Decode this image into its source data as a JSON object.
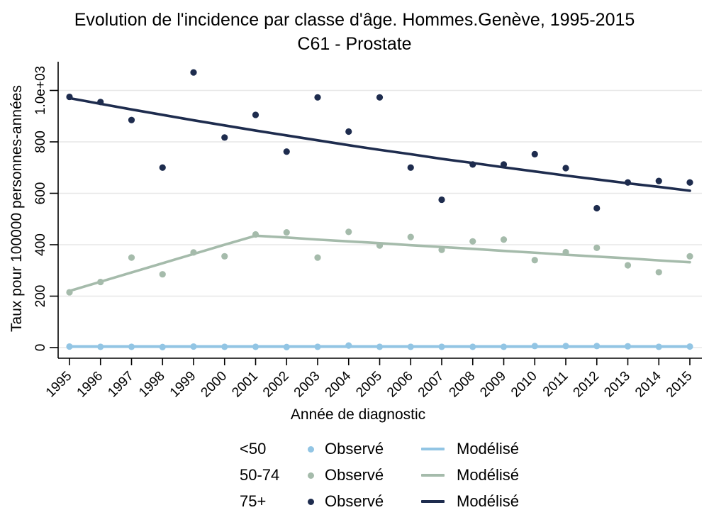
{
  "title": "Evolution de l'incidence par classe d'âge. Hommes.Genève, 1995-2015",
  "subtitle": "C61 - Prostate",
  "colors": {
    "axis": "#000000",
    "grid": "#e7e7e7",
    "background": "#ffffff"
  },
  "chart_data": {
    "type": "scatter",
    "title": "Evolution de l'incidence par classe d'âge. Hommes.Genève, 1995-2015",
    "subtitle": "C61 - Prostate",
    "xlabel": "Année de diagnostic",
    "ylabel": "Taux pour 100000 personnes-années",
    "x": [
      1995,
      1996,
      1997,
      1998,
      1999,
      2000,
      2001,
      2002,
      2003,
      2004,
      2005,
      2006,
      2007,
      2008,
      2009,
      2010,
      2011,
      2012,
      2013,
      2014,
      2015
    ],
    "xlim": [
      1994.6,
      2015.4
    ],
    "ylim": [
      0,
      1112
    ],
    "grid": "horizontal",
    "yticks": [
      {
        "value": 0,
        "label": "0"
      },
      {
        "value": 200,
        "label": "200"
      },
      {
        "value": 400,
        "label": "400"
      },
      {
        "value": 600,
        "label": "600"
      },
      {
        "value": 800,
        "label": "800"
      },
      {
        "value": 1000,
        "label": "1.0e+03"
      }
    ],
    "legend": {
      "position": "bottom",
      "observed_label": "Observé",
      "modelled_label": "Modélisé"
    },
    "series": [
      {
        "name": "<50",
        "color": "#92c5e4",
        "observed": [
          4,
          3,
          3,
          2,
          4,
          3,
          3,
          2,
          3,
          8,
          3,
          3,
          3,
          3,
          3,
          6,
          6,
          6,
          5,
          3,
          4
        ],
        "modelled": [
          4,
          4,
          4,
          4,
          4,
          4,
          4,
          4,
          4,
          4,
          4,
          4,
          4,
          4,
          4,
          4,
          4,
          4,
          4,
          4,
          4
        ]
      },
      {
        "name": "50-74",
        "color": "#a5bbab",
        "observed": [
          215,
          255,
          350,
          285,
          370,
          355,
          440,
          448,
          350,
          450,
          397,
          430,
          380,
          413,
          420,
          340,
          371,
          388,
          320,
          293,
          355
        ],
        "modelled": [
          220,
          256,
          292,
          328,
          364,
          400,
          435,
          428,
          420,
          413,
          406,
          398,
          391,
          384,
          376,
          369,
          361,
          354,
          347,
          339,
          332
        ]
      },
      {
        "name": "75+",
        "color": "#1e2c4e",
        "observed": [
          975,
          955,
          885,
          700,
          1070,
          817,
          905,
          762,
          973,
          840,
          973,
          700,
          575,
          712,
          712,
          752,
          698,
          542,
          642,
          648,
          642
        ],
        "modelled": [
          970,
          948,
          926,
          905,
          884,
          864,
          844,
          825,
          806,
          787,
          769,
          752,
          734,
          718,
          701,
          685,
          669,
          654,
          639,
          625,
          610
        ]
      }
    ]
  }
}
